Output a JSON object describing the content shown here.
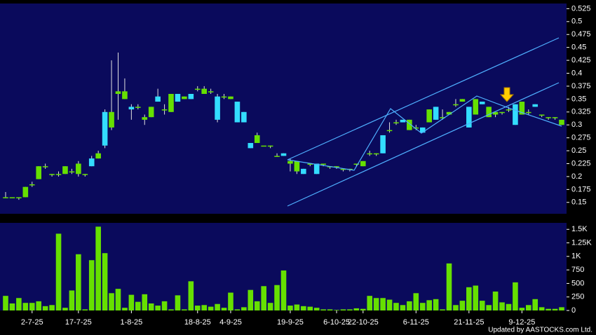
{
  "chart_data": [
    {
      "type": "candlestick",
      "categories": [
        null,
        null,
        null,
        null,
        "2-7-25",
        null,
        null,
        null,
        null,
        null,
        null,
        "17-7-25",
        null,
        null,
        null,
        null,
        null,
        null,
        null,
        "1-8-25",
        null,
        null,
        null,
        null,
        null,
        null,
        null,
        null,
        null,
        "18-8-25",
        null,
        null,
        null,
        null,
        "4-9-25",
        null,
        null,
        null,
        null,
        null,
        null,
        null,
        null,
        "19-9-25",
        null,
        null,
        null,
        null,
        null,
        null,
        "6-10-25",
        null,
        null,
        null,
        "22-10-25",
        null,
        null,
        null,
        null,
        null,
        null,
        null,
        "6-11-25",
        null,
        null,
        null,
        null,
        null,
        null,
        null,
        "21-11-25",
        null,
        null,
        null,
        null,
        null,
        null,
        null,
        "9-12-25",
        null,
        null,
        null,
        null,
        null,
        null
      ],
      "open": [
        0.16,
        0.16,
        0.16,
        0.16,
        0.185,
        0.195,
        0.22,
        0.205,
        0.205,
        0.205,
        0.21,
        0.205,
        0.205,
        0.235,
        0.235,
        0.325,
        0.295,
        0.36,
        0.35,
        0.335,
        0.335,
        0.31,
        0.315,
        0.355,
        0.33,
        0.325,
        0.36,
        0.35,
        0.36,
        0.37,
        0.36,
        0.365,
        0.355,
        0.355,
        0.35,
        0.345,
        0.325,
        0.265,
        0.265,
        0.26,
        0.26,
        0.24,
        0.245,
        0.225,
        0.21,
        0.215,
        0.225,
        0.225,
        0.225,
        0.22,
        0.22,
        0.215,
        0.215,
        0.225,
        0.22,
        0.245,
        0.245,
        0.28,
        0.29,
        0.305,
        0.31,
        0.29,
        0.295,
        0.295,
        0.305,
        0.335,
        0.315,
        0.32,
        0.34,
        0.345,
        0.335,
        0.32,
        0.345,
        0.315,
        0.32,
        0.325,
        0.33,
        0.34,
        0.32,
        0.325,
        0.34,
        0.32,
        0.315,
        0.315,
        0.3
      ],
      "high": [
        0.17,
        0.16,
        0.16,
        0.18,
        0.19,
        0.22,
        0.225,
        0.205,
        0.21,
        0.22,
        0.215,
        0.23,
        0.205,
        0.24,
        0.25,
        0.33,
        0.425,
        0.44,
        0.39,
        0.34,
        0.34,
        0.32,
        0.335,
        0.37,
        0.34,
        0.36,
        0.36,
        0.355,
        0.36,
        0.375,
        0.375,
        0.37,
        0.36,
        0.36,
        0.355,
        0.345,
        0.325,
        0.265,
        0.285,
        0.26,
        0.26,
        0.245,
        0.245,
        0.235,
        0.23,
        0.215,
        0.225,
        0.225,
        0.225,
        0.22,
        0.22,
        0.215,
        0.215,
        0.225,
        0.23,
        0.25,
        0.245,
        0.28,
        0.305,
        0.31,
        0.31,
        0.31,
        0.3,
        0.295,
        0.33,
        0.335,
        0.33,
        0.325,
        0.35,
        0.35,
        0.335,
        0.35,
        0.345,
        0.335,
        0.325,
        0.325,
        0.335,
        0.34,
        0.345,
        0.33,
        0.34,
        0.32,
        0.315,
        0.315,
        0.31
      ],
      "low": [
        0.16,
        0.16,
        0.155,
        0.16,
        0.18,
        0.195,
        0.215,
        0.2,
        0.2,
        0.205,
        0.205,
        0.2,
        0.2,
        0.22,
        0.235,
        0.255,
        0.29,
        0.31,
        0.35,
        0.31,
        0.33,
        0.3,
        0.315,
        0.345,
        0.32,
        0.325,
        0.345,
        0.35,
        0.35,
        0.365,
        0.36,
        0.36,
        0.305,
        0.35,
        0.35,
        0.305,
        0.305,
        0.255,
        0.265,
        0.26,
        0.255,
        0.24,
        0.24,
        0.21,
        0.205,
        0.205,
        0.22,
        0.205,
        0.22,
        0.215,
        0.215,
        0.21,
        0.21,
        0.22,
        0.22,
        0.24,
        0.24,
        0.245,
        0.285,
        0.3,
        0.305,
        0.29,
        0.29,
        0.285,
        0.305,
        0.31,
        0.31,
        0.32,
        0.335,
        0.345,
        0.295,
        0.32,
        0.34,
        0.315,
        0.315,
        0.32,
        0.325,
        0.3,
        0.32,
        0.32,
        0.335,
        0.315,
        0.31,
        0.31,
        0.3
      ],
      "close": [
        0.16,
        0.16,
        0.16,
        0.18,
        0.185,
        0.22,
        0.22,
        0.205,
        0.205,
        0.22,
        0.21,
        0.225,
        0.205,
        0.22,
        0.245,
        0.26,
        0.325,
        0.365,
        0.365,
        0.33,
        0.335,
        0.315,
        0.335,
        0.345,
        0.33,
        0.36,
        0.345,
        0.355,
        0.35,
        0.37,
        0.37,
        0.365,
        0.31,
        0.355,
        0.355,
        0.305,
        0.305,
        0.255,
        0.28,
        0.26,
        0.26,
        0.24,
        0.24,
        0.23,
        0.23,
        0.205,
        0.225,
        0.205,
        0.225,
        0.22,
        0.22,
        0.215,
        0.215,
        0.225,
        0.23,
        0.245,
        0.245,
        0.245,
        0.29,
        0.305,
        0.305,
        0.31,
        0.295,
        0.285,
        0.33,
        0.31,
        0.315,
        0.325,
        0.34,
        0.35,
        0.295,
        0.35,
        0.34,
        0.335,
        0.325,
        0.325,
        0.33,
        0.3,
        0.345,
        0.325,
        0.335,
        0.32,
        0.315,
        0.315,
        0.31
      ],
      "up_color": "#66e000",
      "down_color": "#33ddff",
      "ylim": [
        0.128,
        0.535
      ],
      "yticks": [
        0.15,
        0.175,
        0.2,
        0.225,
        0.25,
        0.275,
        0.3,
        0.325,
        0.35,
        0.375,
        0.4,
        0.425,
        0.45,
        0.475,
        0.5,
        0.525
      ],
      "source": "Updated by AASTOCKS.com Ltd."
    },
    {
      "type": "bar",
      "color": "#66e000",
      "values": [
        270,
        130,
        230,
        140,
        140,
        170,
        80,
        100,
        1420,
        50,
        370,
        1040,
        20,
        930,
        1550,
        1060,
        320,
        400,
        50,
        290,
        160,
        300,
        130,
        90,
        170,
        20,
        280,
        20,
        540,
        90,
        100,
        70,
        120,
        50,
        330,
        20,
        60,
        380,
        170,
        450,
        140,
        470,
        740,
        90,
        110,
        80,
        70,
        50,
        20,
        20,
        10,
        20,
        20,
        40,
        30,
        270,
        230,
        230,
        200,
        140,
        100,
        170,
        320,
        140,
        190,
        210,
        20,
        870,
        100,
        180,
        430,
        460,
        180,
        100,
        350,
        150,
        120,
        520,
        50,
        100,
        210,
        60,
        30,
        30,
        60
      ],
      "ylim": [
        0,
        1620
      ],
      "yticks": [
        0,
        250,
        500,
        750,
        {
          "value": 1000,
          "label": "1K"
        },
        {
          "value": 1250,
          "label": "1.25K"
        },
        {
          "value": 1500,
          "label": "1.5K"
        }
      ]
    }
  ]
}
